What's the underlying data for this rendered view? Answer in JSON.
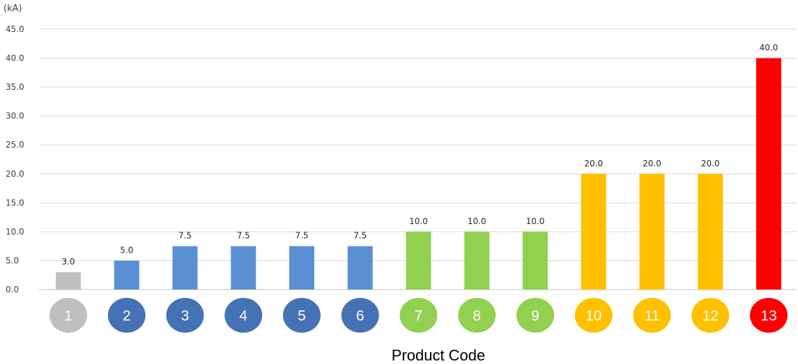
{
  "chart_data": {
    "type": "bar",
    "title": "",
    "xlabel": "Product Code",
    "ylabel": "(kA)",
    "ylim": [
      0,
      45
    ],
    "y_ticks": [
      "0.0",
      "5.0",
      "10.0",
      "15.0",
      "20.0",
      "25.0",
      "30.0",
      "35.0",
      "40.0",
      "45.0"
    ],
    "grid": true,
    "legend": "none",
    "categories": [
      "1",
      "2",
      "3",
      "4",
      "5",
      "6",
      "7",
      "8",
      "9",
      "10",
      "11",
      "12",
      "13"
    ],
    "values": [
      3.0,
      5.0,
      7.5,
      7.5,
      7.5,
      7.5,
      10.0,
      10.0,
      10.0,
      20.0,
      20.0,
      20.0,
      40.0
    ],
    "value_labels": [
      "3.0",
      "5.0",
      "7.5",
      "7.5",
      "7.5",
      "7.5",
      "10.0",
      "10.0",
      "10.0",
      "20.0",
      "20.0",
      "20.0",
      "40.0"
    ],
    "bar_colors": [
      "#bfbfbf",
      "#5b8fd4",
      "#5b8fd4",
      "#5b8fd4",
      "#5b8fd4",
      "#5b8fd4",
      "#92d050",
      "#92d050",
      "#92d050",
      "#ffc000",
      "#ffc000",
      "#ffc000",
      "#ff0000"
    ],
    "badge_colors": [
      "#bfbfbf",
      "#4472b4",
      "#4472b4",
      "#4472b4",
      "#4472b4",
      "#4472b4",
      "#92d050",
      "#92d050",
      "#92d050",
      "#ffc000",
      "#ffc000",
      "#ffc000",
      "#ff0000"
    ]
  }
}
